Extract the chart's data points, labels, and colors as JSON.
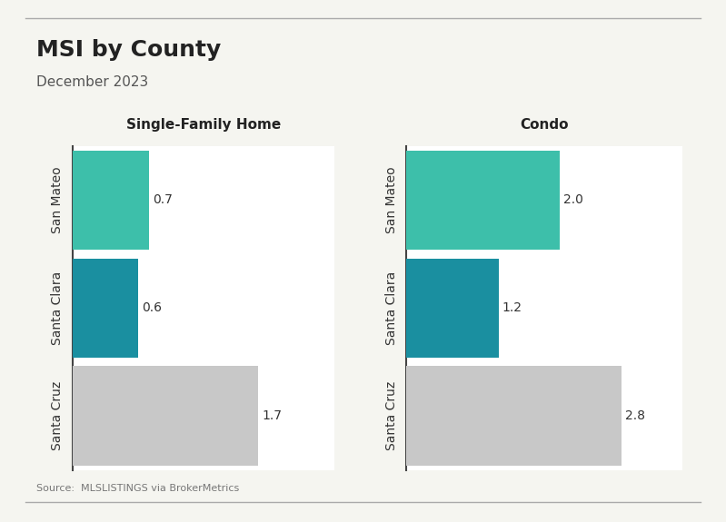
{
  "title": "MSI by County",
  "subtitle": "December 2023",
  "source": "Source:  MLSLISTINGS via BrokerMetrics",
  "categories": [
    "Santa Cruz",
    "Santa Clara",
    "San Mateo"
  ],
  "sfh_values": [
    1.7,
    0.6,
    0.7
  ],
  "condo_values": [
    2.8,
    1.2,
    2.0
  ],
  "sfh_colors": [
    "#c8c8c8",
    "#1a8fa0",
    "#3dbfaa"
  ],
  "condo_colors": [
    "#c8c8c8",
    "#1a8fa0",
    "#3dbfaa"
  ],
  "sfh_title": "Single-Family Home",
  "condo_title": "Condo",
  "background_color": "#f5f5f0",
  "plot_bg": "#ffffff",
  "title_fontsize": 18,
  "subtitle_fontsize": 11,
  "label_fontsize": 10,
  "value_fontsize": 10,
  "source_fontsize": 8
}
